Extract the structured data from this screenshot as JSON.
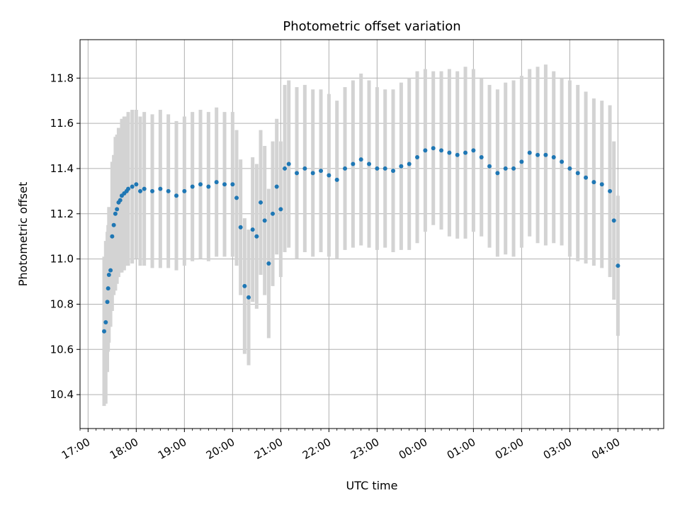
{
  "chart_data": {
    "type": "scatter",
    "title": "Photometric offset variation",
    "xlabel": "UTC time",
    "ylabel": "Photometric offset",
    "x_axis": {
      "scale": "time",
      "tick_labels": [
        "17:00",
        "18:00",
        "19:00",
        "20:00",
        "21:00",
        "22:00",
        "23:00",
        "00:00",
        "01:00",
        "02:00",
        "03:00",
        "04:00"
      ],
      "range": [
        "16:50",
        "05:00 next day"
      ]
    },
    "y_axis": {
      "ticks": [
        10.4,
        10.6,
        10.8,
        11.0,
        11.2,
        11.4,
        11.6,
        11.8
      ],
      "tick_labels": [
        "10.4",
        "10.6",
        "10.8",
        "11.0",
        "11.2",
        "11.4",
        "11.6",
        "11.8"
      ],
      "ylim": [
        10.25,
        11.97
      ]
    },
    "grid": true,
    "colors": {
      "points": "#1f77b4",
      "error_bars": "#d3d3d3"
    },
    "series": [
      {
        "x": [
          "17:20",
          "17:22",
          "17:24",
          "17:25",
          "17:26",
          "17:28",
          "17:30",
          "17:32",
          "17:34",
          "17:36",
          "17:38",
          "17:40",
          "17:42",
          "17:45",
          "17:48",
          "17:50",
          "17:55",
          "18:00",
          "18:05",
          "18:10",
          "18:20",
          "18:30",
          "18:40",
          "18:50",
          "19:00",
          "19:10",
          "19:20",
          "19:30",
          "19:40",
          "19:50",
          "20:00",
          "20:05",
          "20:10",
          "20:15",
          "20:20",
          "20:25",
          "20:30",
          "20:35",
          "20:40",
          "20:45",
          "20:50",
          "20:55",
          "21:00",
          "21:05",
          "21:10",
          "21:20",
          "21:30",
          "21:40",
          "21:50",
          "22:00",
          "22:10",
          "22:20",
          "22:30",
          "22:40",
          "22:50",
          "23:00",
          "23:10",
          "23:20",
          "23:30",
          "23:40",
          "23:50",
          "00:00",
          "00:10",
          "00:20",
          "00:30",
          "00:40",
          "00:50",
          "01:00",
          "01:10",
          "01:20",
          "01:30",
          "01:40",
          "01:50",
          "02:00",
          "02:10",
          "02:20",
          "02:30",
          "02:40",
          "02:50",
          "03:00",
          "03:10",
          "03:20",
          "03:30",
          "03:40",
          "03:50",
          "03:55",
          "04:00"
        ],
        "y": [
          10.68,
          10.72,
          10.81,
          10.87,
          10.93,
          10.95,
          11.1,
          11.15,
          11.2,
          11.22,
          11.25,
          11.26,
          11.28,
          11.29,
          11.3,
          11.31,
          11.32,
          11.33,
          11.3,
          11.31,
          11.3,
          11.31,
          11.3,
          11.28,
          11.3,
          11.32,
          11.33,
          11.32,
          11.34,
          11.33,
          11.33,
          11.27,
          11.14,
          10.88,
          10.83,
          11.13,
          11.1,
          11.25,
          11.17,
          10.98,
          11.2,
          11.32,
          11.22,
          11.4,
          11.42,
          11.38,
          11.4,
          11.38,
          11.39,
          11.37,
          11.35,
          11.4,
          11.42,
          11.44,
          11.42,
          11.4,
          11.4,
          11.39,
          11.41,
          11.42,
          11.45,
          11.48,
          11.49,
          11.48,
          11.47,
          11.46,
          11.47,
          11.48,
          11.45,
          11.41,
          11.38,
          11.4,
          11.4,
          11.43,
          11.47,
          11.46,
          11.46,
          11.45,
          11.43,
          11.4,
          11.38,
          11.36,
          11.34,
          11.33,
          11.3,
          11.17,
          10.97
        ],
        "yerr": [
          0.33,
          0.36,
          0.31,
          0.28,
          0.3,
          0.25,
          0.33,
          0.31,
          0.34,
          0.33,
          0.33,
          0.32,
          0.34,
          0.34,
          0.33,
          0.34,
          0.34,
          0.33,
          0.33,
          0.34,
          0.34,
          0.35,
          0.34,
          0.33,
          0.33,
          0.33,
          0.33,
          0.33,
          0.33,
          0.32,
          0.32,
          0.3,
          0.3,
          0.3,
          0.3,
          0.32,
          0.32,
          0.32,
          0.33,
          0.33,
          0.32,
          0.3,
          0.3,
          0.37,
          0.37,
          0.38,
          0.37,
          0.37,
          0.36,
          0.36,
          0.35,
          0.36,
          0.37,
          0.38,
          0.37,
          0.36,
          0.35,
          0.36,
          0.37,
          0.38,
          0.38,
          0.36,
          0.34,
          0.35,
          0.37,
          0.37,
          0.38,
          0.36,
          0.35,
          0.36,
          0.37,
          0.38,
          0.39,
          0.38,
          0.37,
          0.39,
          0.4,
          0.38,
          0.37,
          0.39,
          0.39,
          0.38,
          0.37,
          0.37,
          0.38,
          0.35,
          0.31
        ]
      }
    ]
  }
}
